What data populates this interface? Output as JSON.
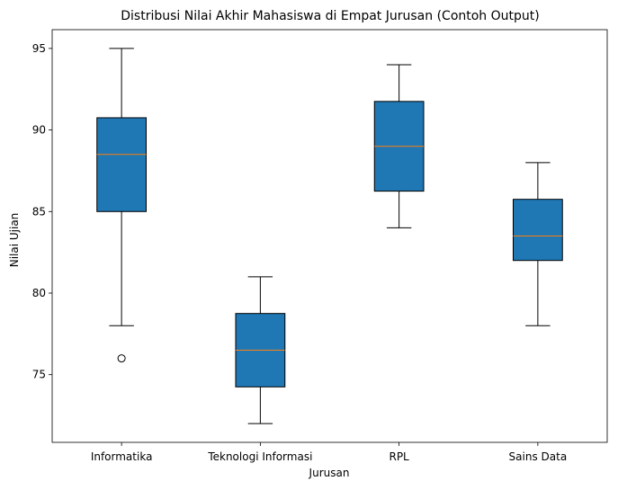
{
  "chart_data": {
    "type": "boxplot",
    "title": "Distribusi Nilai Akhir Mahasiswa di Empat Jurusan (Contoh Output)",
    "xlabel": "Jurusan",
    "ylabel": "Nilai Ujian",
    "categories": [
      "Informatika",
      "Teknologi Informasi",
      "RPL",
      "Sains Data"
    ],
    "ylim": [
      70.85,
      96.15
    ],
    "yticks": [
      75,
      80,
      85,
      90,
      95
    ],
    "boxes": [
      {
        "category": "Informatika",
        "whisker_low": 78,
        "q1": 85,
        "median": 88.5,
        "q3": 90.75,
        "whisker_high": 95,
        "outliers": [
          76
        ]
      },
      {
        "category": "Teknologi Informasi",
        "whisker_low": 72,
        "q1": 74.25,
        "median": 76.5,
        "q3": 78.75,
        "whisker_high": 81,
        "outliers": []
      },
      {
        "category": "RPL",
        "whisker_low": 84,
        "q1": 86.25,
        "median": 89,
        "q3": 91.75,
        "whisker_high": 94,
        "outliers": []
      },
      {
        "category": "Sains Data",
        "whisker_low": 78,
        "q1": 82,
        "median": 83.5,
        "q3": 85.75,
        "whisker_high": 88,
        "outliers": []
      }
    ],
    "box_color": "#1f77b4",
    "median_color": "#ff7f0e",
    "grid": false
  }
}
